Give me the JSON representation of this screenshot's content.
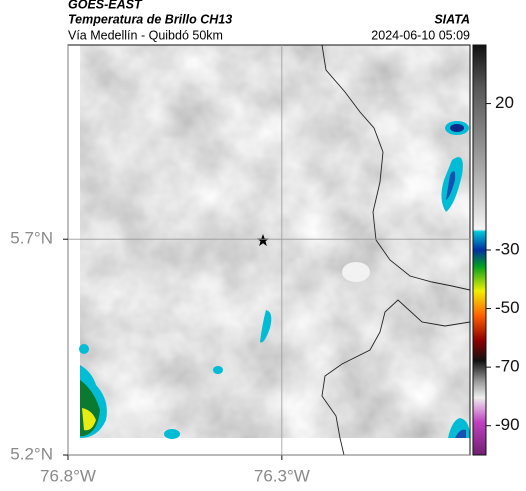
{
  "header": {
    "title": "GOES-EAST",
    "subtitle": "Temperatura de Brillo CH13",
    "route": "Vía Medellín - Quibdó 50km",
    "source": "SIATA",
    "timestamp": "2024-06-10 05:09"
  },
  "map": {
    "xlim": [
      -76.8,
      -75.86
    ],
    "ylim": [
      5.2,
      6.15
    ],
    "xticks": [
      {
        "value": -76.8,
        "label": "76.8°W"
      },
      {
        "value": -76.3,
        "label": "76.3°W"
      }
    ],
    "yticks": [
      {
        "value": 5.2,
        "label": "5.2°N"
      },
      {
        "value": 5.7,
        "label": "5.7°N"
      }
    ],
    "grid": true
  },
  "colorbar": {
    "clim": [
      -100,
      40
    ],
    "ticks": [
      20,
      -30,
      -50,
      -70,
      -90
    ]
  }
}
